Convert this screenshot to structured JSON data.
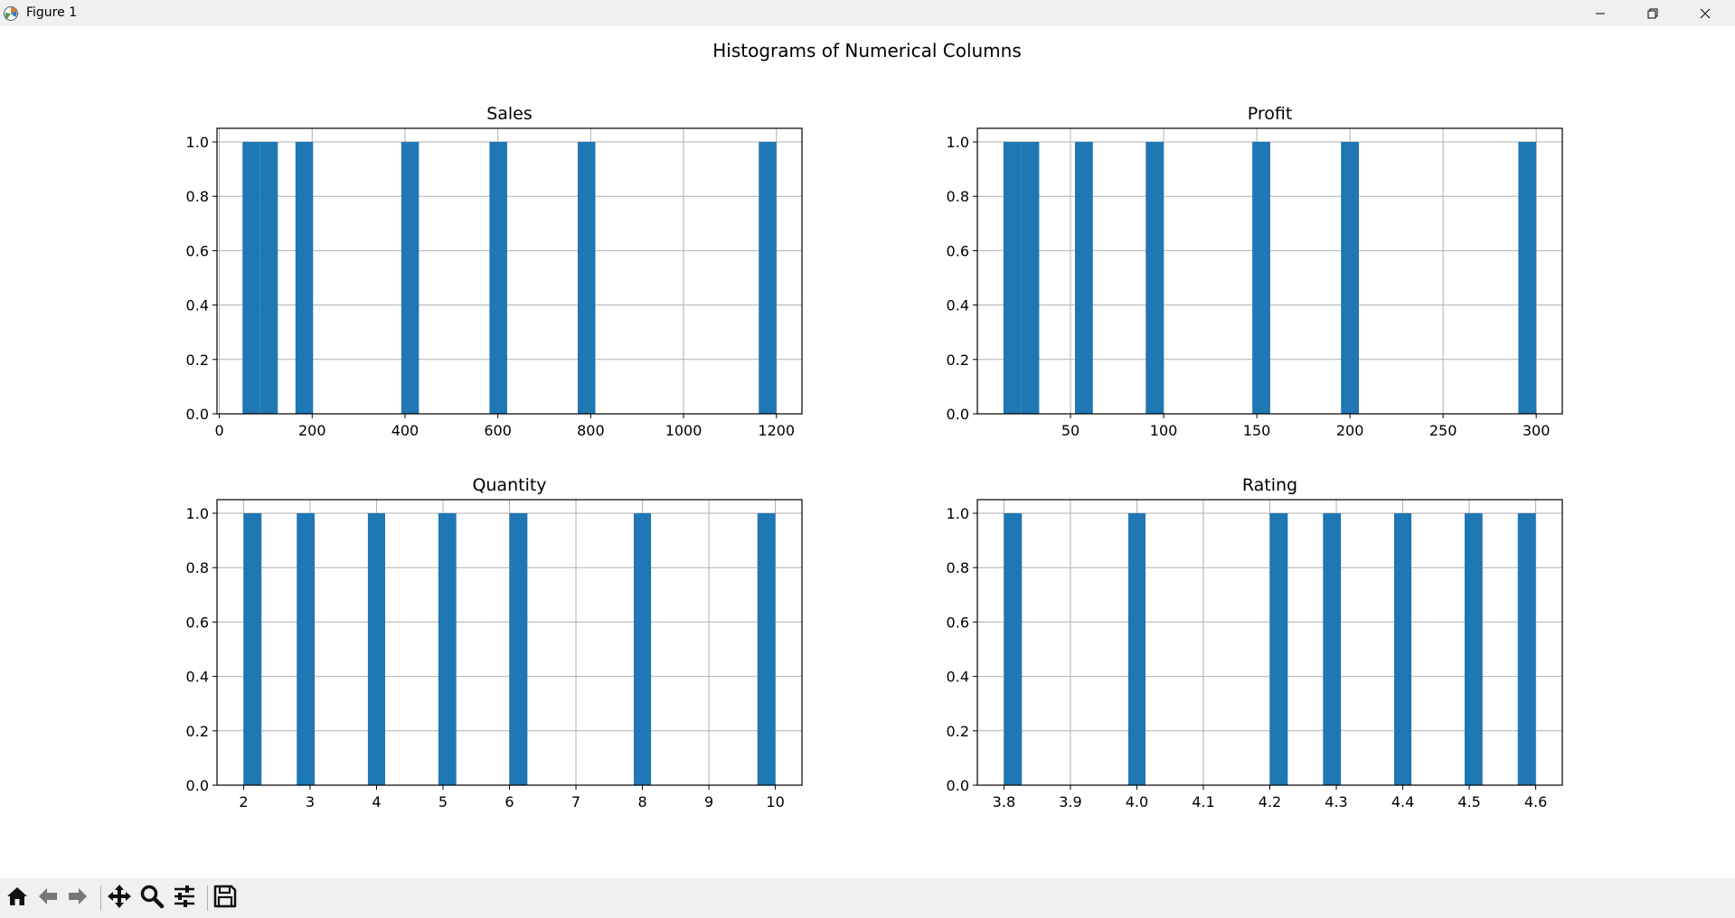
{
  "window": {
    "title": "Figure 1",
    "icons": [
      "app-icon",
      "minimize-icon",
      "restore-icon",
      "close-icon"
    ]
  },
  "toolbar": {
    "tools": [
      "home-icon",
      "back-arrow-icon",
      "forward-arrow-icon",
      "pan-icon",
      "zoom-icon",
      "configure-subplots-icon",
      "save-icon"
    ]
  },
  "chart_data": {
    "suptitle": "Histograms of Numerical Columns",
    "type": "histogram-grid",
    "bar_color": "#1f77b4",
    "grid": true,
    "subplots": [
      {
        "title": "Sales",
        "type": "bar",
        "xlim": [
          -5,
          1255
        ],
        "ylim": [
          0,
          1.05
        ],
        "xticks": [
          0,
          200,
          400,
          600,
          800,
          1000,
          1200
        ],
        "yticks": [
          "0.0",
          "0.2",
          "0.4",
          "0.6",
          "0.8",
          "1.0"
        ],
        "bars": [
          {
            "x0": 50,
            "x1": 88,
            "value": 1
          },
          {
            "x0": 88,
            "x1": 126,
            "value": 1
          },
          {
            "x0": 164,
            "x1": 202,
            "value": 1
          },
          {
            "x0": 392,
            "x1": 430,
            "value": 1
          },
          {
            "x0": 582,
            "x1": 620,
            "value": 1
          },
          {
            "x0": 772,
            "x1": 810,
            "value": 1
          },
          {
            "x0": 1162,
            "x1": 1200,
            "value": 1
          }
        ]
      },
      {
        "title": "Profit",
        "type": "bar",
        "xlim": [
          0,
          314
        ],
        "ylim": [
          0,
          1.05
        ],
        "xticks": [
          50,
          100,
          150,
          200,
          250,
          300
        ],
        "yticks": [
          "0.0",
          "0.2",
          "0.4",
          "0.6",
          "0.8",
          "1.0"
        ],
        "bars": [
          {
            "x0": 14,
            "x1": 23.6,
            "value": 1
          },
          {
            "x0": 23.6,
            "x1": 33.2,
            "value": 1
          },
          {
            "x0": 52.4,
            "x1": 62,
            "value": 1
          },
          {
            "x0": 90.4,
            "x1": 100,
            "value": 1
          },
          {
            "x0": 147.6,
            "x1": 157.2,
            "value": 1
          },
          {
            "x0": 195.2,
            "x1": 204.8,
            "value": 1
          },
          {
            "x0": 290.4,
            "x1": 300,
            "value": 1
          }
        ]
      },
      {
        "title": "Quantity",
        "type": "bar",
        "xlim": [
          1.6,
          10.4
        ],
        "ylim": [
          0,
          1.05
        ],
        "xticks": [
          2,
          3,
          4,
          5,
          6,
          7,
          8,
          9,
          10
        ],
        "yticks": [
          "0.0",
          "0.2",
          "0.4",
          "0.6",
          "0.8",
          "1.0"
        ],
        "bars": [
          {
            "x0": 2,
            "x1": 2.27,
            "value": 1
          },
          {
            "x0": 2.8,
            "x1": 3.07,
            "value": 1
          },
          {
            "x0": 3.87,
            "x1": 4.13,
            "value": 1
          },
          {
            "x0": 4.93,
            "x1": 5.2,
            "value": 1
          },
          {
            "x0": 6,
            "x1": 6.27,
            "value": 1
          },
          {
            "x0": 7.87,
            "x1": 8.13,
            "value": 1
          },
          {
            "x0": 9.73,
            "x1": 10,
            "value": 1
          }
        ]
      },
      {
        "title": "Rating",
        "type": "bar",
        "xlim": [
          3.76,
          4.64
        ],
        "ylim": [
          0,
          1.05
        ],
        "xticks": [
          "3.8",
          "3.9",
          "4.0",
          "4.1",
          "4.2",
          "4.3",
          "4.4",
          "4.5",
          "4.6"
        ],
        "bars": [
          {
            "x0": 3.8,
            "x1": 3.827,
            "value": 1
          },
          {
            "x0": 3.987,
            "x1": 4.013,
            "value": 1
          },
          {
            "x0": 4.2,
            "x1": 4.227,
            "value": 1
          },
          {
            "x0": 4.28,
            "x1": 4.307,
            "value": 1
          },
          {
            "x0": 4.387,
            "x1": 4.413,
            "value": 1
          },
          {
            "x0": 4.493,
            "x1": 4.52,
            "value": 1
          },
          {
            "x0": 4.573,
            "x1": 4.6,
            "value": 1
          }
        ],
        "yticks": [
          "0.0",
          "0.2",
          "0.4",
          "0.6",
          "0.8",
          "1.0"
        ]
      }
    ]
  }
}
